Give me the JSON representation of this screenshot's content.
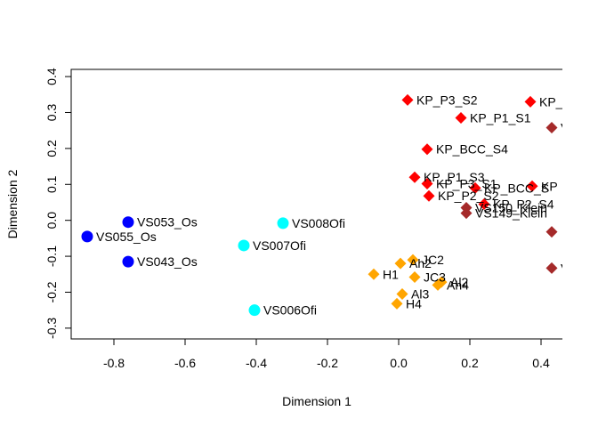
{
  "chart_data": {
    "type": "scatter",
    "xlabel": "Dimension 1",
    "ylabel": "Dimension 2",
    "xlim": [
      -0.92,
      0.46
    ],
    "ylim": [
      -0.33,
      0.42
    ],
    "xticks": [
      -0.8,
      -0.6,
      -0.4,
      -0.2,
      0.0,
      0.2,
      0.4
    ],
    "xtick_labels": [
      "-0.8",
      "-0.6",
      "-0.4",
      "-0.2",
      "0.0",
      "0.2",
      "0.4"
    ],
    "yticks": [
      -0.3,
      -0.2,
      -0.1,
      0.0,
      0.1,
      0.2,
      0.3,
      0.4
    ],
    "ytick_labels": [
      "-0.3",
      "-0.2",
      "-0.1",
      "0.0",
      "0.1",
      "0.2",
      "0.3",
      "0.4"
    ],
    "grid": false,
    "legend": "none",
    "colors": {
      "blue": "#0000ff",
      "cyan": "#00ffff",
      "orange": "#ffa500",
      "red": "#ff0000",
      "darkred": "#a52a2a"
    },
    "points": [
      {
        "label": "VS053_Os",
        "x": -0.76,
        "y": -0.005,
        "shape": "circle",
        "color": "#0000ff"
      },
      {
        "label": "VS055_Os",
        "x": -0.875,
        "y": -0.045,
        "shape": "circle",
        "color": "#0000ff"
      },
      {
        "label": "VS043_Os",
        "x": -0.76,
        "y": -0.115,
        "shape": "circle",
        "color": "#0000ff"
      },
      {
        "label": "VS008Ofi",
        "x": -0.325,
        "y": -0.008,
        "shape": "circle",
        "color": "#00ffff"
      },
      {
        "label": "VS007Ofi",
        "x": -0.435,
        "y": -0.07,
        "shape": "circle",
        "color": "#00ffff"
      },
      {
        "label": "VS006Ofi",
        "x": -0.405,
        "y": -0.25,
        "shape": "circle",
        "color": "#00ffff"
      },
      {
        "label": "Ah2",
        "x": 0.005,
        "y": -0.12,
        "shape": "diamond",
        "color": "#ffa500"
      },
      {
        "label": "JC2",
        "x": 0.04,
        "y": -0.11,
        "shape": "diamond",
        "color": "#ffa500"
      },
      {
        "label": "H1",
        "x": -0.07,
        "y": -0.15,
        "shape": "diamond",
        "color": "#ffa500"
      },
      {
        "label": "JC3",
        "x": 0.045,
        "y": -0.158,
        "shape": "diamond",
        "color": "#ffa500"
      },
      {
        "label": "Al2",
        "x": 0.12,
        "y": -0.172,
        "shape": "diamond",
        "color": "#ffa500"
      },
      {
        "label": "Ah4",
        "x": 0.11,
        "y": -0.18,
        "shape": "diamond",
        "color": "#ffa500"
      },
      {
        "label": "Al3",
        "x": 0.01,
        "y": -0.205,
        "shape": "diamond",
        "color": "#ffa500"
      },
      {
        "label": "H4",
        "x": -0.005,
        "y": -0.232,
        "shape": "diamond",
        "color": "#ffa500"
      },
      {
        "label": "KP_P3_S2",
        "x": 0.025,
        "y": 0.335,
        "shape": "diamond",
        "color": "#ff0000"
      },
      {
        "label": "KP_",
        "x": 0.37,
        "y": 0.33,
        "shape": "diamond",
        "color": "#ff0000"
      },
      {
        "label": "KP_P1_S1",
        "x": 0.175,
        "y": 0.285,
        "shape": "diamond",
        "color": "#ff0000"
      },
      {
        "label": "KP_BCC_S4",
        "x": 0.08,
        "y": 0.198,
        "shape": "diamond",
        "color": "#ff0000"
      },
      {
        "label": "KP_P1_S3",
        "x": 0.045,
        "y": 0.12,
        "shape": "diamond",
        "color": "#ff0000"
      },
      {
        "label": "KP_P3_S1",
        "x": 0.08,
        "y": 0.102,
        "shape": "diamond",
        "color": "#ff0000"
      },
      {
        "label": "KP_BCC_S",
        "x": 0.215,
        "y": 0.09,
        "shape": "diamond",
        "color": "#ff0000"
      },
      {
        "label": "KP",
        "x": 0.375,
        "y": 0.095,
        "shape": "diamond",
        "color": "#ff0000"
      },
      {
        "label": "KP_P2_S2",
        "x": 0.085,
        "y": 0.068,
        "shape": "diamond",
        "color": "#ff0000"
      },
      {
        "label": "KP_P2_S4",
        "x": 0.24,
        "y": 0.045,
        "shape": "diamond",
        "color": "#ff0000"
      },
      {
        "label": "VS150_Klein",
        "x": 0.19,
        "y": 0.035,
        "shape": "diamond",
        "color": "#a52a2a"
      },
      {
        "label": "VS149_Klein",
        "x": 0.19,
        "y": 0.02,
        "shape": "diamond",
        "color": "#a52a2a"
      },
      {
        "label": "V",
        "x": 0.43,
        "y": 0.258,
        "shape": "diamond",
        "color": "#a52a2a"
      },
      {
        "label": "",
        "x": 0.43,
        "y": -0.032,
        "shape": "diamond",
        "color": "#a52a2a"
      },
      {
        "label": "V",
        "x": 0.43,
        "y": -0.133,
        "shape": "diamond",
        "color": "#a52a2a"
      }
    ]
  }
}
